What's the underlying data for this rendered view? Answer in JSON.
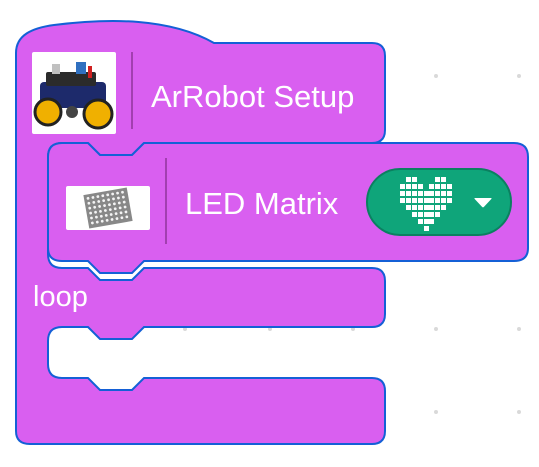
{
  "colors": {
    "block_fill": "#d95ff0",
    "block_stroke": "#1460d6",
    "dropdown_fill": "#0fa57a",
    "workspace_dot": "#d8d8d8"
  },
  "hat_block": {
    "label": "ArRobot Setup",
    "icon": "robot-car-image-icon"
  },
  "inner_block": {
    "label": "LED Matrix",
    "icon": "led-matrix-image-icon",
    "dropdown": {
      "selected": "heart-pattern-icon",
      "caret": "caret-down-icon"
    }
  },
  "loop_section": {
    "label": "loop"
  }
}
